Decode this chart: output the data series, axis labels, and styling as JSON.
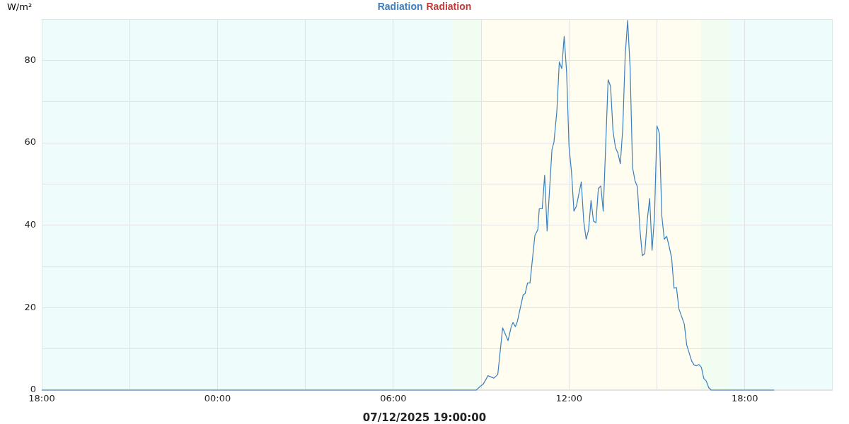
{
  "chart_data": {
    "type": "line",
    "title": "Radiation",
    "ylabel": "W/m²",
    "xlabel": "07/12/2025 19:00:00",
    "legend": "top",
    "grid": true,
    "marker": "none",
    "line_style": "solid",
    "xlim": [
      "2025-12-06T18:00",
      "2025-12-07T21:00"
    ],
    "ylim": [
      0,
      90
    ],
    "xticks": [
      {
        "value": "2025-12-06T18:00",
        "label": "18:00"
      },
      {
        "value": "2025-12-06T21:00",
        "label": null
      },
      {
        "value": "2025-12-07T00:00",
        "label": "00:00"
      },
      {
        "value": "2025-12-07T03:00",
        "label": null
      },
      {
        "value": "2025-12-07T06:00",
        "label": "06:00"
      },
      {
        "value": "2025-12-07T09:00",
        "label": null
      },
      {
        "value": "2025-12-07T12:00",
        "label": "12:00"
      },
      {
        "value": "2025-12-07T15:00",
        "label": null
      },
      {
        "value": "2025-12-07T18:00",
        "label": "18:00"
      }
    ],
    "yticks": [
      0,
      {
        "value": 10,
        "label": null
      },
      20,
      {
        "value": 30,
        "label": null
      },
      40,
      {
        "value": 50,
        "label": null
      },
      60,
      {
        "value": 70,
        "label": null
      },
      80
    ],
    "bands": [
      {
        "axis": "x",
        "from": "2025-12-06T18:00",
        "to": "2025-12-07T08:00",
        "color": "#effcfc"
      },
      {
        "axis": "x",
        "from": "2025-12-07T08:00",
        "to": "2025-12-07T09:00",
        "color": "#f0fdf0"
      },
      {
        "axis": "x",
        "from": "2025-12-07T09:00",
        "to": "2025-12-07T16:30",
        "color": "#fefdf0"
      },
      {
        "axis": "x",
        "from": "2025-12-07T16:30",
        "to": "2025-12-07T17:30",
        "color": "#f0fdf0"
      },
      {
        "axis": "x",
        "from": "2025-12-07T17:30",
        "to": "2025-12-07T21:00",
        "color": "#effcfc"
      }
    ],
    "series": [
      {
        "name": "Radiation",
        "color": "#3b7fbf",
        "x": [
          "2025-12-06T18:00",
          "2025-12-07T08:50",
          "2025-12-07T08:57",
          "2025-12-07T09:04",
          "2025-12-07T09:14",
          "2025-12-07T09:26",
          "2025-12-07T09:34",
          "2025-12-07T09:44",
          "2025-12-07T09:55",
          "2025-12-07T10:01",
          "2025-12-07T10:05",
          "2025-12-07T10:10",
          "2025-12-07T10:14",
          "2025-12-07T10:26",
          "2025-12-07T10:30",
          "2025-12-07T10:35",
          "2025-12-07T10:40",
          "2025-12-07T10:50",
          "2025-12-07T10:56",
          "2025-12-07T10:59",
          "2025-12-07T11:05",
          "2025-12-07T11:10",
          "2025-12-07T11:15",
          "2025-12-07T11:25",
          "2025-12-07T11:29",
          "2025-12-07T11:35",
          "2025-12-07T11:40",
          "2025-12-07T11:45",
          "2025-12-07T11:50",
          "2025-12-07T11:55",
          "2025-12-07T12:00",
          "2025-12-07T12:05",
          "2025-12-07T12:10",
          "2025-12-07T12:15",
          "2025-12-07T12:25",
          "2025-12-07T12:30",
          "2025-12-07T12:35",
          "2025-12-07T12:40",
          "2025-12-07T12:45",
          "2025-12-07T12:50",
          "2025-12-07T12:55",
          "2025-12-07T13:00",
          "2025-12-07T13:05",
          "2025-12-07T13:10",
          "2025-12-07T13:20",
          "2025-12-07T13:25",
          "2025-12-07T13:30",
          "2025-12-07T13:35",
          "2025-12-07T13:40",
          "2025-12-07T13:45",
          "2025-12-07T13:50",
          "2025-12-07T13:55",
          "2025-12-07T14:00",
          "2025-12-07T14:05",
          "2025-12-07T14:10",
          "2025-12-07T14:15",
          "2025-12-07T14:20",
          "2025-12-07T14:25",
          "2025-12-07T14:30",
          "2025-12-07T14:35",
          "2025-12-07T14:40",
          "2025-12-07T14:45",
          "2025-12-07T14:50",
          "2025-12-07T14:55",
          "2025-12-07T15:00",
          "2025-12-07T15:05",
          "2025-12-07T15:10",
          "2025-12-07T15:15",
          "2025-12-07T15:20",
          "2025-12-07T15:25",
          "2025-12-07T15:30",
          "2025-12-07T15:35",
          "2025-12-07T15:40",
          "2025-12-07T15:45",
          "2025-12-07T15:56",
          "2025-12-07T16:01",
          "2025-12-07T16:11",
          "2025-12-07T16:16",
          "2025-12-07T16:21",
          "2025-12-07T16:26",
          "2025-12-07T16:31",
          "2025-12-07T16:36",
          "2025-12-07T16:41",
          "2025-12-07T16:46",
          "2025-12-07T16:51",
          "2025-12-07T19:00"
        ],
        "values": [
          0,
          0,
          0.8,
          1.4,
          3.5,
          2.9,
          3.8,
          15.1,
          12,
          15.1,
          16.4,
          15.4,
          16.6,
          23.1,
          23.4,
          26,
          26,
          37.5,
          38.9,
          44,
          44,
          52.1,
          38.6,
          58.4,
          60.1,
          67.7,
          79.6,
          78,
          85.8,
          77.1,
          58.9,
          52.9,
          43.4,
          44.6,
          50.5,
          41,
          36.6,
          38.9,
          46,
          41,
          40.6,
          48.9,
          49.5,
          43.4,
          75.3,
          73.7,
          62.9,
          58.8,
          57.5,
          54.9,
          63.5,
          81.3,
          89.7,
          78.3,
          54,
          50.8,
          49.3,
          39.2,
          32.6,
          33.1,
          41,
          46.5,
          33.9,
          42.2,
          64.1,
          62.3,
          42.2,
          36.6,
          37.3,
          34.8,
          32.1,
          24.7,
          24.9,
          19.7,
          16,
          10.9,
          7.1,
          6.1,
          5.9,
          6.2,
          5.5,
          2.8,
          2.2,
          0.6,
          0,
          0
        ]
      }
    ]
  }
}
